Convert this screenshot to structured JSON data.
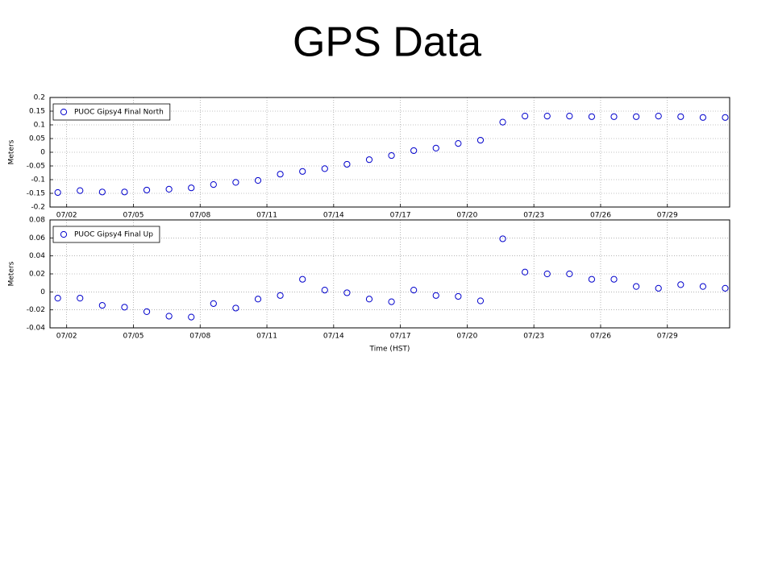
{
  "title": "GPS Data",
  "chart_data": [
    {
      "type": "scatter",
      "ylabel": "Meters",
      "grid": true,
      "legend": "upper left",
      "xlim": [
        1.25,
        31.8
      ],
      "ylim": [
        -0.2,
        0.2
      ],
      "xticks": [
        {
          "value": 2,
          "label": "07/02"
        },
        {
          "value": 5,
          "label": "07/05"
        },
        {
          "value": 8,
          "label": "07/08"
        },
        {
          "value": 11,
          "label": "07/11"
        },
        {
          "value": 14,
          "label": "07/14"
        },
        {
          "value": 17,
          "label": "07/17"
        },
        {
          "value": 20,
          "label": "07/20"
        },
        {
          "value": 23,
          "label": "07/23"
        },
        {
          "value": 26,
          "label": "07/26"
        },
        {
          "value": 29,
          "label": "07/29"
        }
      ],
      "yticks": [
        0.2,
        0.15,
        0.1,
        0.05,
        0,
        -0.05,
        -0.1,
        -0.15,
        -0.2
      ],
      "series": [
        {
          "name": "PUOC Gipsy4 Final North",
          "color": "#0000cc",
          "x": [
            1.6,
            2.6,
            3.6,
            4.6,
            5.6,
            6.6,
            7.6,
            8.6,
            9.6,
            10.6,
            11.6,
            12.6,
            13.6,
            14.6,
            15.6,
            16.6,
            17.6,
            18.6,
            19.6,
            20.6,
            21.6,
            22.6,
            23.6,
            24.6,
            25.6,
            26.6,
            27.6,
            28.6,
            29.6,
            30.6,
            31.6
          ],
          "values": [
            -0.147,
            -0.14,
            -0.145,
            -0.145,
            -0.138,
            -0.135,
            -0.13,
            -0.118,
            -0.11,
            -0.103,
            -0.08,
            -0.07,
            -0.06,
            -0.044,
            -0.027,
            -0.012,
            0.006,
            0.015,
            0.032,
            0.044,
            0.11,
            0.132,
            0.132,
            0.132,
            0.13,
            0.13,
            0.13,
            0.132,
            0.13,
            0.127,
            0.127
          ]
        }
      ]
    },
    {
      "type": "scatter",
      "ylabel": "Meters",
      "xlabel": "Time (HST)",
      "grid": true,
      "legend": "upper left",
      "xlim": [
        1.25,
        31.8
      ],
      "ylim": [
        -0.04,
        0.08
      ],
      "xticks": [
        {
          "value": 2,
          "label": "07/02"
        },
        {
          "value": 5,
          "label": "07/05"
        },
        {
          "value": 8,
          "label": "07/08"
        },
        {
          "value": 11,
          "label": "07/11"
        },
        {
          "value": 14,
          "label": "07/14"
        },
        {
          "value": 17,
          "label": "07/17"
        },
        {
          "value": 20,
          "label": "07/20"
        },
        {
          "value": 23,
          "label": "07/23"
        },
        {
          "value": 26,
          "label": "07/26"
        },
        {
          "value": 29,
          "label": "07/29"
        }
      ],
      "yticks": [
        0.08,
        0.06,
        0.04,
        0.02,
        0,
        -0.02,
        -0.04
      ],
      "series": [
        {
          "name": "PUOC Gipsy4 Final Up",
          "color": "#0000cc",
          "x": [
            1.6,
            2.6,
            3.6,
            4.6,
            5.6,
            6.6,
            7.6,
            8.6,
            9.6,
            10.6,
            11.6,
            12.6,
            13.6,
            14.6,
            15.6,
            16.6,
            17.6,
            18.6,
            19.6,
            20.6,
            21.6,
            22.6,
            23.6,
            24.6,
            25.6,
            26.6,
            27.6,
            28.6,
            29.6,
            30.6,
            31.6
          ],
          "values": [
            -0.007,
            -0.007,
            -0.015,
            -0.017,
            -0.022,
            -0.027,
            -0.028,
            -0.013,
            -0.018,
            -0.008,
            -0.004,
            0.014,
            0.002,
            -0.001,
            -0.008,
            -0.011,
            0.002,
            -0.004,
            -0.005,
            -0.01,
            0.059,
            0.022,
            0.02,
            0.02,
            0.014,
            0.014,
            0.006,
            0.004,
            0.008,
            0.006,
            0.004
          ]
        }
      ]
    }
  ]
}
